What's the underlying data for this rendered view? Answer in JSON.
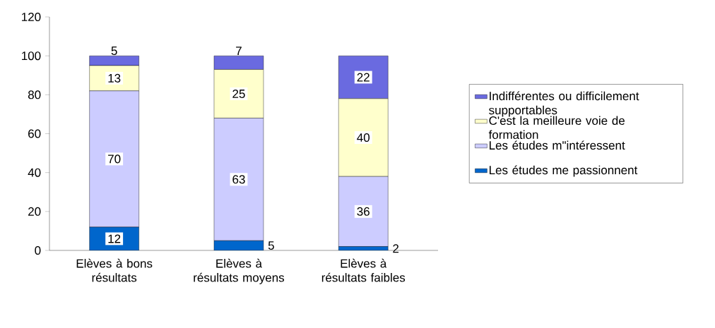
{
  "chart_data": {
    "type": "bar",
    "stacked": true,
    "data_labels": true,
    "legend": "right",
    "categories": [
      "Elèves à bons résultats",
      "Elèves à résultats moyens",
      "Elèves à résultats faibles"
    ],
    "series": [
      {
        "name": "Les études me passionnent",
        "color": "#0066cc",
        "values": [
          12,
          5,
          2
        ]
      },
      {
        "name": "Les études m\"intéressent",
        "color": "#ccccff",
        "values": [
          70,
          63,
          36
        ]
      },
      {
        "name": "C'est la meilleure voie de formation",
        "color": "#ffffcc",
        "values": [
          13,
          25,
          40
        ]
      },
      {
        "name": "Indifférentes ou difficilement supportables",
        "color": "#6a6ae0",
        "values": [
          5,
          7,
          22
        ]
      }
    ],
    "ylim": [
      0,
      120
    ],
    "yticks": [
      0,
      20,
      40,
      60,
      80,
      100,
      120
    ]
  }
}
